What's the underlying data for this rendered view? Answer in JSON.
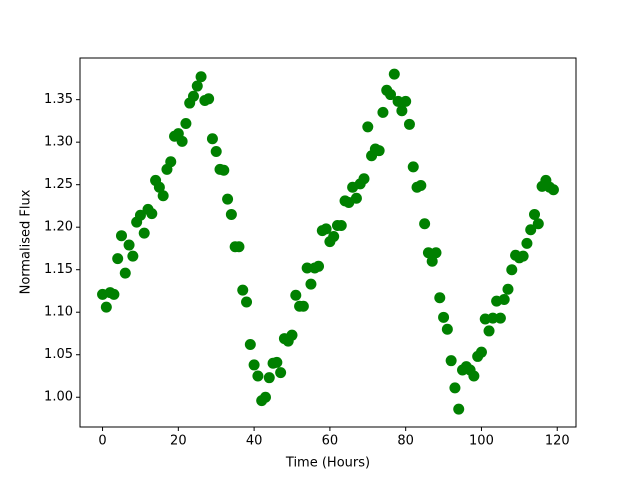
{
  "chart_data": {
    "type": "scatter",
    "xlabel": "Time (Hours)",
    "ylabel": "Normalised Flux",
    "color": "#008000",
    "x": [
      0,
      1,
      2,
      3,
      4,
      5,
      6,
      7,
      8,
      9,
      10,
      11,
      12,
      13,
      14,
      15,
      16,
      17,
      18,
      19,
      20,
      21,
      22,
      23,
      24,
      25,
      26,
      27,
      28,
      29,
      30,
      31,
      32,
      33,
      34,
      35,
      36,
      37,
      38,
      39,
      40,
      41,
      42,
      43,
      44,
      45,
      46,
      47,
      48,
      49,
      50,
      51,
      52,
      53,
      54,
      55,
      56,
      57,
      58,
      59,
      60,
      61,
      62,
      63,
      64,
      65,
      66,
      67,
      68,
      69,
      70,
      71,
      72,
      73,
      74,
      75,
      76,
      77,
      78,
      79,
      80,
      81,
      82,
      83,
      84,
      85,
      86,
      87,
      88,
      89,
      90,
      91,
      92,
      93,
      94,
      95,
      96,
      97,
      98,
      99,
      100,
      101,
      102,
      103,
      104,
      105,
      106,
      107,
      108,
      109,
      110,
      111,
      112,
      113,
      114,
      115,
      116,
      117,
      118,
      119
    ],
    "values": [
      1.121,
      1.106,
      1.123,
      1.121,
      1.163,
      1.19,
      1.146,
      1.179,
      1.166,
      1.206,
      1.214,
      1.193,
      1.221,
      1.216,
      1.255,
      1.247,
      1.237,
      1.268,
      1.277,
      1.307,
      1.31,
      1.301,
      1.322,
      1.346,
      1.354,
      1.366,
      1.377,
      1.349,
      1.351,
      1.304,
      1.289,
      1.268,
      1.267,
      1.233,
      1.215,
      1.177,
      1.177,
      1.126,
      1.112,
      1.062,
      1.038,
      1.025,
      0.996,
      1.0,
      1.023,
      1.04,
      1.041,
      1.029,
      1.069,
      1.066,
      1.073,
      1.12,
      1.107,
      1.107,
      1.152,
      1.133,
      1.152,
      1.154,
      1.196,
      1.198,
      1.183,
      1.189,
      1.202,
      1.202,
      1.231,
      1.229,
      1.247,
      1.234,
      1.251,
      1.257,
      1.318,
      1.284,
      1.292,
      1.29,
      1.335,
      1.361,
      1.356,
      1.38,
      1.348,
      1.337,
      1.348,
      1.321,
      1.271,
      1.247,
      1.249,
      1.204,
      1.17,
      1.16,
      1.17,
      1.117,
      1.094,
      1.08,
      1.043,
      1.011,
      0.986,
      1.032,
      1.036,
      1.032,
      1.025,
      1.048,
      1.053,
      1.092,
      1.078,
      1.093,
      1.113,
      1.093,
      1.115,
      1.127,
      1.15,
      1.167,
      1.164,
      1.166,
      1.181,
      1.197,
      1.215,
      1.204,
      1.248,
      1.255,
      1.247,
      1.244
    ],
    "xlim": [
      -5.95,
      124.95
    ],
    "xticks": [
      0,
      20,
      40,
      60,
      80,
      100,
      120
    ],
    "ylim": [
      0.965,
      1.399
    ],
    "yticks": [
      {
        "value": 1.0,
        "label": "1.00"
      },
      {
        "value": 1.05,
        "label": "1.05"
      },
      {
        "value": 1.1,
        "label": "1.10"
      },
      {
        "value": 1.15,
        "label": "1.15"
      },
      {
        "value": 1.2,
        "label": "1.20"
      },
      {
        "value": 1.25,
        "label": "1.25"
      },
      {
        "value": 1.3,
        "label": "1.30"
      },
      {
        "value": 1.35,
        "label": "1.35"
      }
    ]
  }
}
